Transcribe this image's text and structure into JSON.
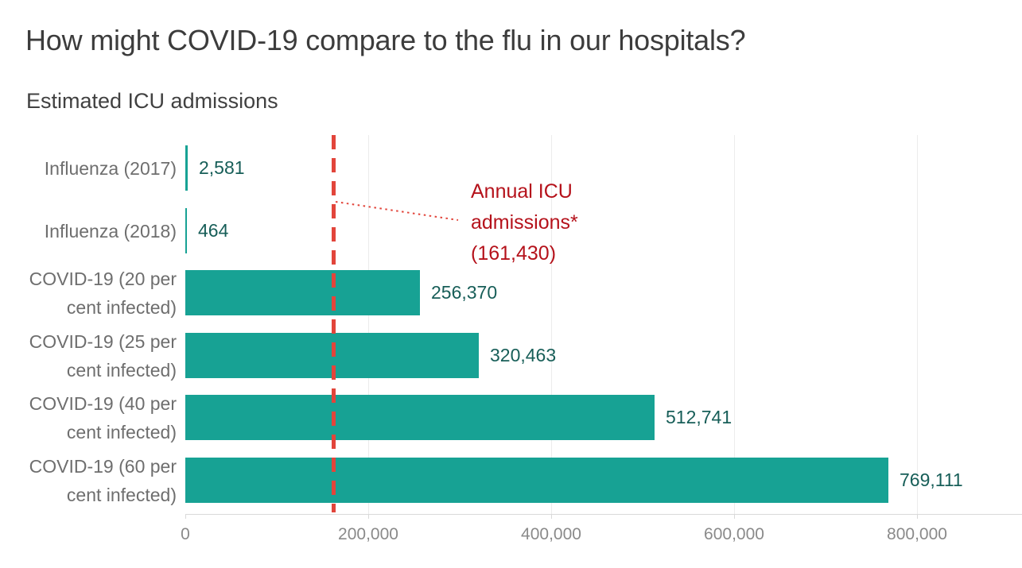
{
  "page": {
    "title": "How might COVID-19 compare to the flu in our hospitals?",
    "subtitle": "Estimated ICU admissions"
  },
  "chart_data": {
    "type": "bar",
    "orientation": "horizontal",
    "title": "How might COVID-19 compare to the flu in our hospitals?",
    "subtitle": "Estimated ICU admissions",
    "categories": [
      "Influenza (2017)",
      "Influenza (2018)",
      "COVID-19 (20 per cent infected)",
      "COVID-19 (25 per cent infected)",
      "COVID-19 (40 per cent infected)",
      "COVID-19 (60 per cent infected)"
    ],
    "category_lines": [
      [
        "Influenza (2017)"
      ],
      [
        "Influenza (2018)"
      ],
      [
        "COVID-19 (20 per",
        "cent infected)"
      ],
      [
        "COVID-19 (25 per",
        "cent infected)"
      ],
      [
        "COVID-19 (40 per",
        "cent infected)"
      ],
      [
        "COVID-19 (60 per",
        "cent infected)"
      ]
    ],
    "values": [
      2581,
      464,
      256370,
      320463,
      512741,
      769111
    ],
    "value_labels": [
      "2,581",
      "464",
      "256,370",
      "320,463",
      "512,741",
      "769,111"
    ],
    "xlabel": "",
    "ylabel": "",
    "xlim": [
      0,
      915000
    ],
    "x_ticks": [
      0,
      200000,
      400000,
      600000,
      800000
    ],
    "x_tick_labels": [
      "0",
      "200,000",
      "400,000",
      "600,000",
      "800,000"
    ],
    "grid": true,
    "legend": "none",
    "reference_line": {
      "value": 161430,
      "label": "Annual ICU admissions* (161,430)",
      "label_lines": [
        "Annual ICU",
        "admissions*",
        "(161,430)"
      ]
    }
  },
  "colors": {
    "bar": "#17A294",
    "value_label": "#175E58",
    "category_label": "#6E6E6E",
    "tick_label": "#8A8A8A",
    "title": "#3C3C3C",
    "subtitle": "#414141",
    "reference_line": "#E2453B",
    "annotation_text": "#B5121B",
    "axis": "#D9D9D9",
    "gridline": "#ECECEC",
    "background": "#FFFFFF"
  }
}
